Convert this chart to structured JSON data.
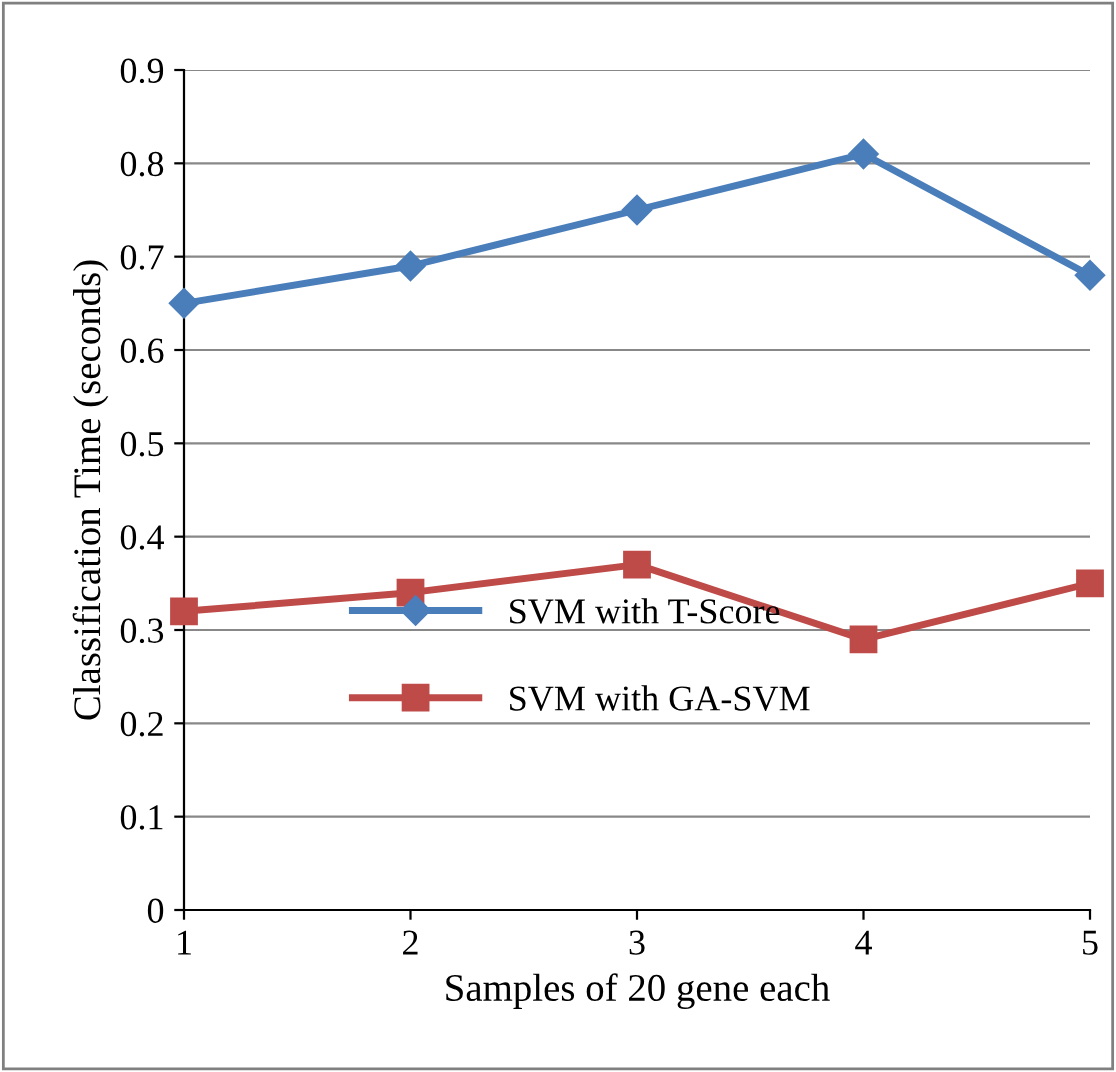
{
  "chart_data": {
    "type": "line",
    "xlabel": "Samples of 20 gene each",
    "ylabel": "Classification Time (seconds)",
    "x": [
      1,
      2,
      3,
      4,
      5
    ],
    "series": [
      {
        "name": "SVM with T-Score",
        "color": "#4a7ebb",
        "marker": "diamond",
        "values": [
          0.65,
          0.69,
          0.75,
          0.81,
          0.68
        ]
      },
      {
        "name": "SVM with GA-SVM",
        "color": "#be4b48",
        "marker": "square",
        "values": [
          0.32,
          0.34,
          0.37,
          0.29,
          0.35
        ]
      }
    ],
    "xlim": [
      1,
      5
    ],
    "xticks": [
      1,
      2,
      3,
      4,
      5
    ],
    "ylim": [
      0,
      0.9
    ],
    "yticks": [
      0,
      0.1,
      0.2,
      0.3,
      0.4,
      0.5,
      0.6,
      0.7,
      0.8,
      0.9
    ],
    "grid": "y",
    "legend": "left",
    "line_style": "solid"
  }
}
